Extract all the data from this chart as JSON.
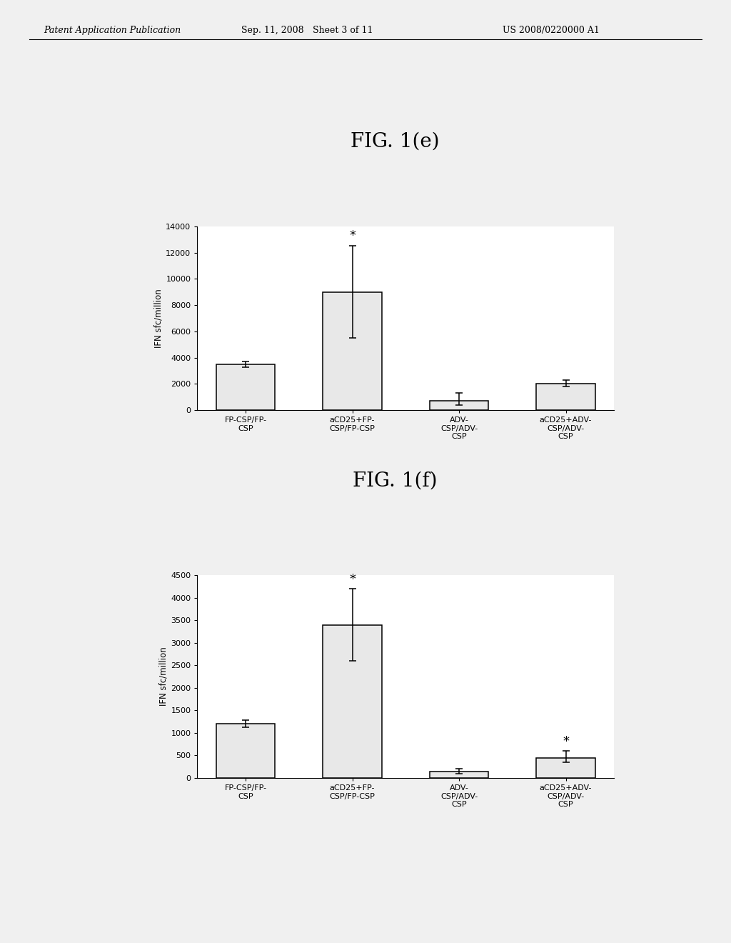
{
  "header_left": "Patent Application Publication",
  "header_mid": "Sep. 11, 2008  Sheet 3 of 11",
  "header_right": "US 2008/0220000 A1",
  "fig_e": {
    "title": "FIG. 1(e)",
    "ylabel": "IFN sfc/million",
    "ylim": [
      0,
      14000
    ],
    "yticks": [
      0,
      2000,
      4000,
      6000,
      8000,
      10000,
      12000,
      14000
    ],
    "categories": [
      "FP-CSP/FP-\nCSP",
      "aCD25+FP-\nCSP/FP-CSP",
      "ADV-\nCSP/ADV-\nCSP",
      "aCD25+ADV-\nCSP/ADV-\nCSP"
    ],
    "values": [
      3500,
      9000,
      700,
      2000
    ],
    "errors_up": [
      200,
      3500,
      600,
      300
    ],
    "errors_down": [
      200,
      3500,
      300,
      200
    ],
    "star_bars": [
      1
    ]
  },
  "fig_f": {
    "title": "FIG. 1(f)",
    "ylabel": "IFN sfc/million",
    "ylim": [
      0,
      4500
    ],
    "yticks": [
      0,
      500,
      1000,
      1500,
      2000,
      2500,
      3000,
      3500,
      4000,
      4500
    ],
    "categories": [
      "FP-CSP/FP-\nCSP",
      "aCD25+FP-\nCSP/FP-CSP",
      "ADV-\nCSP/ADV-\nCSP",
      "aCD25+ADV-\nCSP/ADV-\nCSP"
    ],
    "values": [
      1200,
      3400,
      150,
      450
    ],
    "errors_up": [
      80,
      800,
      50,
      150
    ],
    "errors_down": [
      80,
      800,
      50,
      100
    ],
    "star_bars": [
      1,
      3
    ]
  },
  "background_color": "#f0f0f0",
  "bar_color": "#e8e8e8",
  "bar_edge_color": "#000000",
  "bar_width": 0.55
}
